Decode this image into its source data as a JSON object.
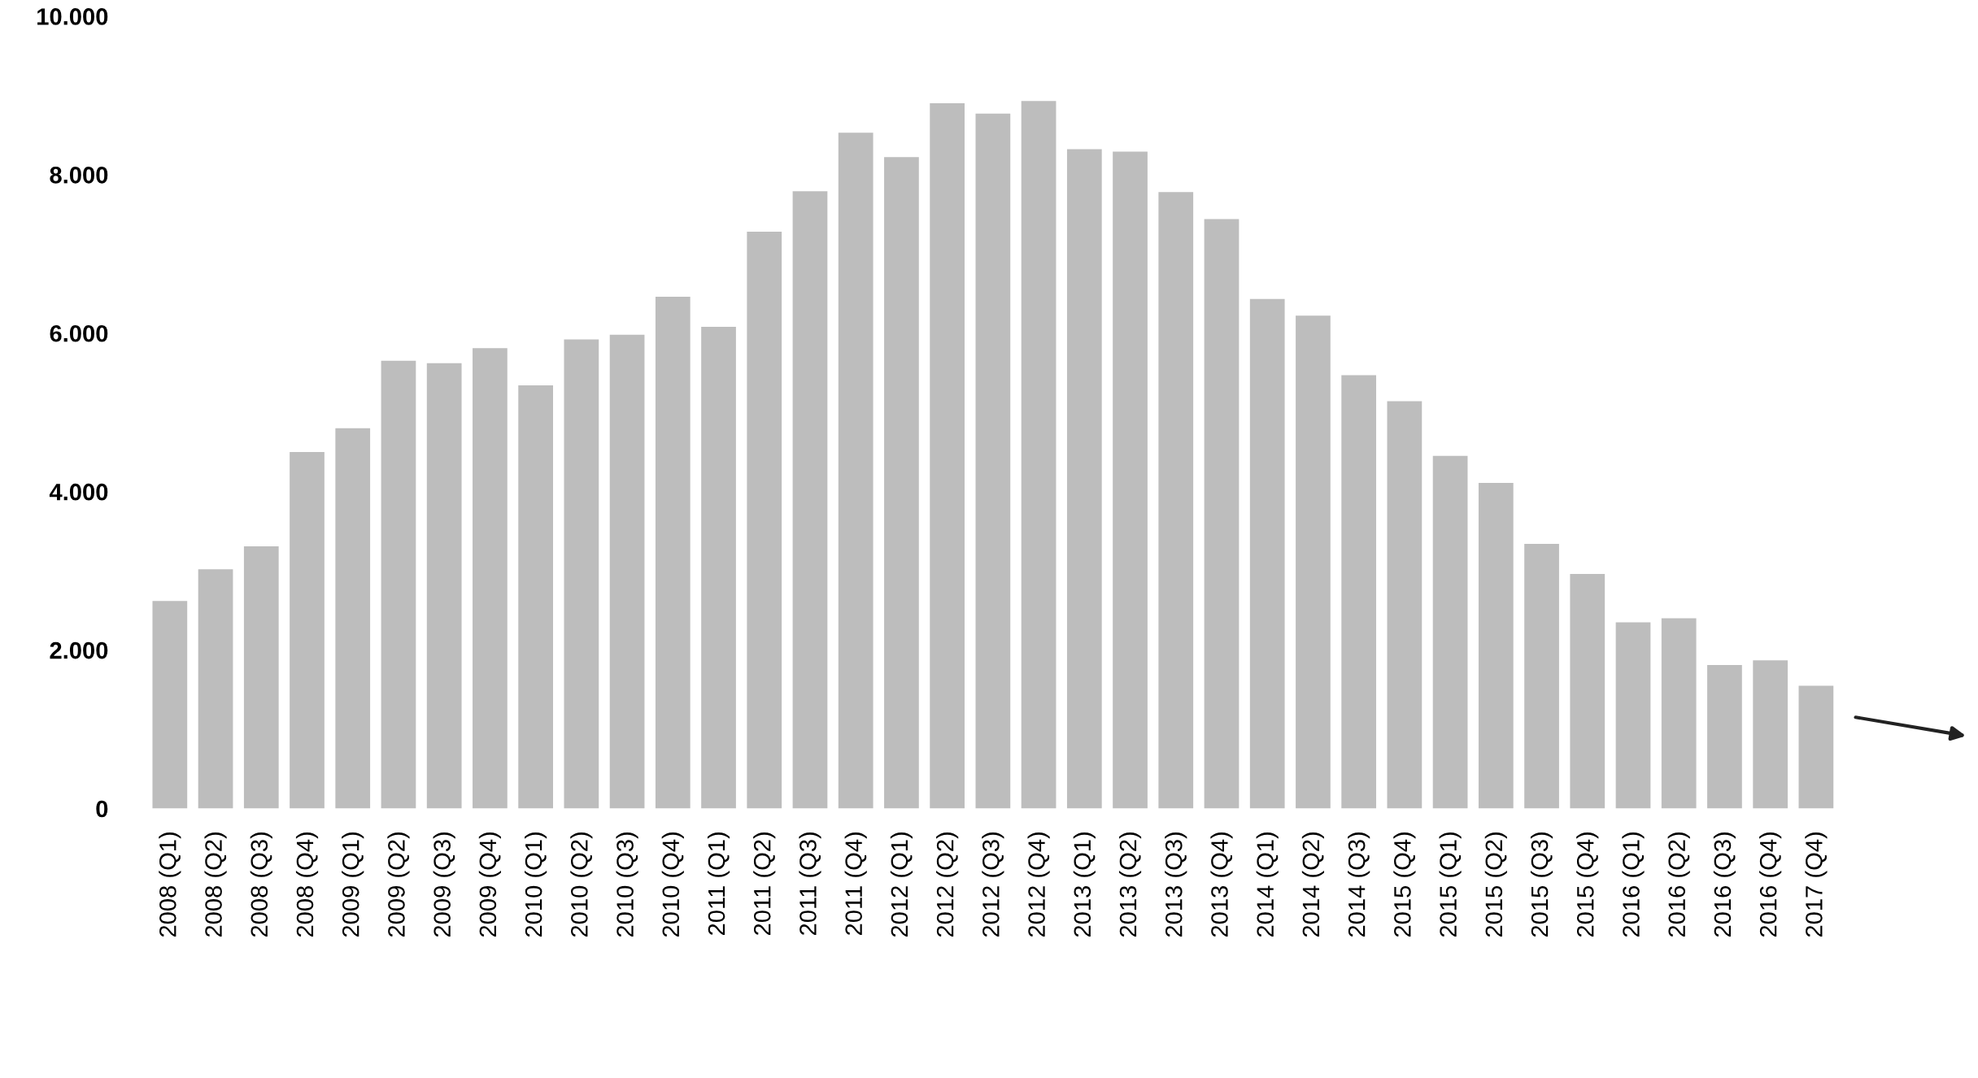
{
  "chart_data": {
    "type": "bar",
    "categories": [
      "2008 (Q1)",
      "2008 (Q2)",
      "2008 (Q3)",
      "2008 (Q4)",
      "2009 (Q1)",
      "2009 (Q2)",
      "2009 (Q3)",
      "2009 (Q4)",
      "2010 (Q1)",
      "2010 (Q2)",
      "2010 (Q3)",
      "2010 (Q4)",
      "2011 (Q1)",
      "2011 (Q2)",
      "2011 (Q3)",
      "2011 (Q4)",
      "2012 (Q1)",
      "2012 (Q2)",
      "2012 (Q3)",
      "2012 (Q4)",
      "2013 (Q1)",
      "2013 (Q2)",
      "2013 (Q3)",
      "2013 (Q4)",
      "2014 (Q1)",
      "2014 (Q2)",
      "2014 (Q3)",
      "2015 (Q4)",
      "2015 (Q1)",
      "2015 (Q2)",
      "2015 (Q3)",
      "2015 (Q4)",
      "2016 (Q1)",
      "2016 (Q2)",
      "2016 (Q3)",
      "2016 (Q4)",
      "2017 (Q4)"
    ],
    "values": [
      2620,
      3020,
      3310,
      4500,
      4800,
      5650,
      5620,
      5810,
      5340,
      5920,
      5980,
      6460,
      6080,
      7280,
      7790,
      8530,
      8220,
      8900,
      8770,
      8930,
      8320,
      8290,
      7780,
      7440,
      6430,
      6220,
      5470,
      5140,
      4450,
      4110,
      3340,
      2960,
      2350,
      2400,
      1810,
      1870,
      1550
    ],
    "color": "#bdbdbd",
    "ylim": [
      0,
      10000
    ],
    "yticks": [
      {
        "value": 0,
        "label": "0"
      },
      {
        "value": 2000,
        "label": "2.000"
      },
      {
        "value": 4000,
        "label": "4.000"
      },
      {
        "value": 6000,
        "label": "6.000"
      },
      {
        "value": 8000,
        "label": "8.000"
      },
      {
        "value": 10000,
        "label": "10.000"
      }
    ],
    "grid": false
  }
}
